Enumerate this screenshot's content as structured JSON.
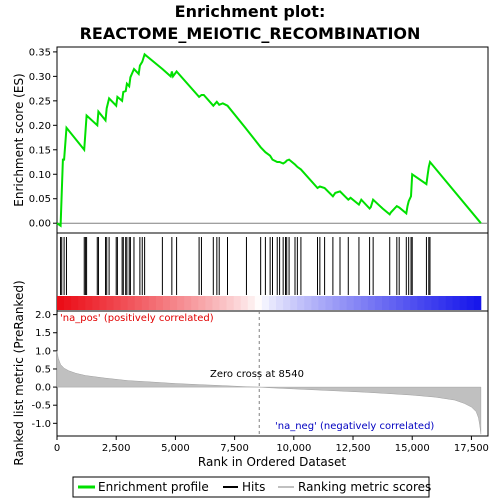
{
  "chart_data": {
    "type": "line",
    "title_line1": "Enrichment plot:",
    "title_line2": "REACTOME_MEIOTIC_RECOMBINATION",
    "es_panel": {
      "ylabel": "Enrichment score (ES)",
      "ylim": [
        -0.02,
        0.36
      ],
      "yticks": [
        0.0,
        0.05,
        0.1,
        0.15,
        0.2,
        0.25,
        0.3,
        0.35
      ],
      "ytick_labels": [
        "0.00",
        "0.05",
        "0.10",
        "0.15",
        "0.20",
        "0.25",
        "0.30",
        "0.35"
      ],
      "series_name": "Enrichment profile",
      "color": "#00e000",
      "x": [
        0,
        150,
        200,
        250,
        300,
        400,
        1150,
        1200,
        1250,
        1700,
        1750,
        2050,
        2100,
        2200,
        2500,
        2550,
        2750,
        2800,
        2900,
        2950,
        3050,
        3100,
        3250,
        3450,
        3500,
        3600,
        3700,
        4450,
        4800,
        4850,
        4900,
        5050,
        6000,
        6100,
        6200,
        6600,
        6750,
        6850,
        7000,
        7200,
        8000,
        8600,
        8800,
        9000,
        9100,
        9300,
        9400,
        9550,
        9650,
        9700,
        9800,
        10050,
        10150,
        10300,
        11000,
        11100,
        11300,
        11650,
        11750,
        11950,
        12300,
        12400,
        12750,
        12850,
        13200,
        13250,
        13350,
        13750,
        14050,
        14100,
        14350,
        14450,
        14750,
        14800,
        14850,
        14950,
        15000,
        15600,
        15650,
        15700,
        15750,
        17900
      ],
      "y": [
        0.0,
        -0.005,
        0.06,
        0.13,
        0.13,
        0.195,
        0.15,
        0.185,
        0.22,
        0.2,
        0.228,
        0.21,
        0.235,
        0.255,
        0.24,
        0.258,
        0.25,
        0.268,
        0.27,
        0.285,
        0.28,
        0.298,
        0.315,
        0.305,
        0.322,
        0.33,
        0.345,
        0.315,
        0.3,
        0.31,
        0.3,
        0.31,
        0.258,
        0.262,
        0.262,
        0.24,
        0.248,
        0.242,
        0.245,
        0.24,
        0.192,
        0.155,
        0.145,
        0.138,
        0.13,
        0.125,
        0.125,
        0.122,
        0.125,
        0.128,
        0.13,
        0.12,
        0.115,
        0.11,
        0.072,
        0.075,
        0.072,
        0.055,
        0.062,
        0.065,
        0.048,
        0.052,
        0.038,
        0.048,
        0.03,
        0.033,
        0.048,
        0.03,
        0.018,
        0.022,
        0.035,
        0.032,
        0.02,
        0.035,
        0.045,
        0.055,
        0.1,
        0.08,
        0.098,
        0.115,
        0.125,
        0.0
      ]
    },
    "hits": {
      "positions": [
        150,
        200,
        300,
        400,
        1150,
        1200,
        1250,
        1700,
        1750,
        2050,
        2100,
        2200,
        2500,
        2550,
        2750,
        2800,
        2900,
        2950,
        3050,
        3100,
        3250,
        3500,
        3600,
        3700,
        4450,
        4850,
        5050,
        6000,
        6100,
        6600,
        6750,
        6850,
        7200,
        8000,
        8600,
        8800,
        9000,
        9100,
        9300,
        9400,
        9550,
        9650,
        9700,
        9800,
        10050,
        10150,
        10300,
        11000,
        11100,
        11300,
        11650,
        11950,
        12300,
        12750,
        13200,
        13350,
        14050,
        14350,
        14450,
        14750,
        14850,
        14950,
        15000,
        15600,
        15700,
        15750
      ]
    },
    "metric_panel": {
      "ylabel": "Ranked list metric (PreRanked)",
      "ylim": [
        -1.35,
        2.1
      ],
      "yticks": [
        -1.0,
        -0.5,
        0.0,
        0.5,
        1.0,
        1.5,
        2.0
      ],
      "ytick_labels": [
        "-1.0",
        "-0.5",
        "0.0",
        "0.5",
        "1.0",
        "1.5",
        "2.0"
      ],
      "series_name": "Ranking metric scores",
      "color": "#c0c0c0",
      "x": [
        0,
        50,
        150,
        300,
        500,
        800,
        1200,
        2000,
        3000,
        4000,
        5000,
        6000,
        7000,
        8000,
        8540,
        9000,
        10000,
        11000,
        12000,
        13000,
        14000,
        15000,
        16000,
        16800,
        17200,
        17500,
        17700,
        17800,
        17850,
        17900
      ],
      "y": [
        1.0,
        0.8,
        0.62,
        0.52,
        0.45,
        0.38,
        0.32,
        0.25,
        0.18,
        0.14,
        0.1,
        0.07,
        0.04,
        0.01,
        0.0,
        -0.02,
        -0.05,
        -0.08,
        -0.11,
        -0.14,
        -0.18,
        -0.22,
        -0.28,
        -0.36,
        -0.45,
        -0.55,
        -0.68,
        -0.85,
        -1.05,
        -1.3
      ]
    },
    "annotations": {
      "pos_label": "'na_pos' (positively correlated)",
      "neg_label": "'na_neg' (negatively correlated)",
      "zero_cross_label": "Zero cross at 8540",
      "zero_cross": 8540
    },
    "xaxis": {
      "label": "Rank in Ordered Dataset",
      "xlim": [
        0,
        18200
      ],
      "ticks": [
        0,
        2500,
        5000,
        7500,
        10000,
        12500,
        15000,
        17500
      ],
      "tick_labels": [
        "0",
        "2,500",
        "5,000",
        "7,500",
        "10,000",
        "12,500",
        "15,000",
        "17,500"
      ],
      "n_genes": 17900
    },
    "legend": {
      "items": [
        "Enrichment profile",
        "Hits",
        "Ranking metric scores"
      ],
      "colors": [
        "#00e000",
        "#000000",
        "#c0c0c0"
      ],
      "placement": "bottom"
    },
    "colors": {
      "pos_label": "#e00000",
      "neg_label": "#0000c0",
      "zero_line": "#808080"
    }
  }
}
